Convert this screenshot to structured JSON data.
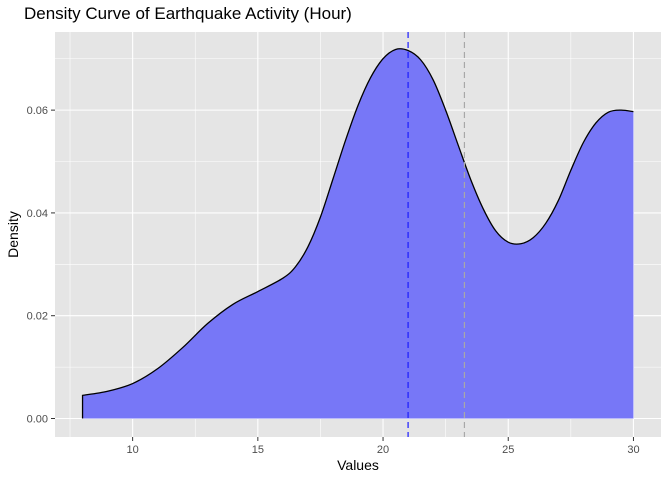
{
  "chart_data": {
    "type": "area",
    "title": "Density Curve of Earthquake Activity (Hour)",
    "xlabel": "Values",
    "ylabel": "Density",
    "xlim": [
      6.9,
      31.1
    ],
    "ylim": [
      -0.0036,
      0.0752
    ],
    "x_ticks": [
      10,
      15,
      20,
      25,
      30
    ],
    "x_tick_labels": [
      "10",
      "15",
      "20",
      "25",
      "30"
    ],
    "y_ticks": [
      0.0,
      0.02,
      0.04,
      0.06
    ],
    "y_tick_labels": [
      "0.00",
      "0.02",
      "0.04",
      "0.06"
    ],
    "grid": true,
    "legend": "none",
    "series": [
      {
        "x": [
          8.0,
          9.0,
          10.0,
          11.0,
          12.0,
          13.0,
          14.0,
          15.0,
          16.0,
          16.5,
          17.0,
          17.5,
          18.0,
          18.5,
          19.0,
          19.5,
          20.0,
          20.5,
          21.0,
          21.5,
          22.0,
          22.5,
          23.0,
          23.5,
          24.0,
          24.5,
          25.0,
          25.5,
          26.0,
          26.5,
          27.0,
          27.5,
          28.0,
          28.5,
          29.0,
          29.5,
          30.0
        ],
        "values": [
          0.0045,
          0.0053,
          0.0068,
          0.0097,
          0.0138,
          0.0185,
          0.0222,
          0.0247,
          0.0273,
          0.0295,
          0.0334,
          0.0392,
          0.0466,
          0.0541,
          0.0609,
          0.0663,
          0.07,
          0.0718,
          0.0716,
          0.0698,
          0.0659,
          0.06,
          0.0532,
          0.0465,
          0.0408,
          0.0365,
          0.0343,
          0.034,
          0.0352,
          0.038,
          0.0424,
          0.0483,
          0.0537,
          0.0575,
          0.0596,
          0.06,
          0.0597
        ]
      }
    ],
    "reference_lines": [
      {
        "x": 21.0,
        "style": "dashed"
      },
      {
        "x": 23.25,
        "style": "dashed"
      }
    ],
    "colors": {
      "panel_background": "#e5e5e5",
      "grid": "#ffffff",
      "fill": "#7777f7",
      "curve": "#000000",
      "line_a": "#1b1bff",
      "line_b": "#a8a8a8"
    }
  }
}
